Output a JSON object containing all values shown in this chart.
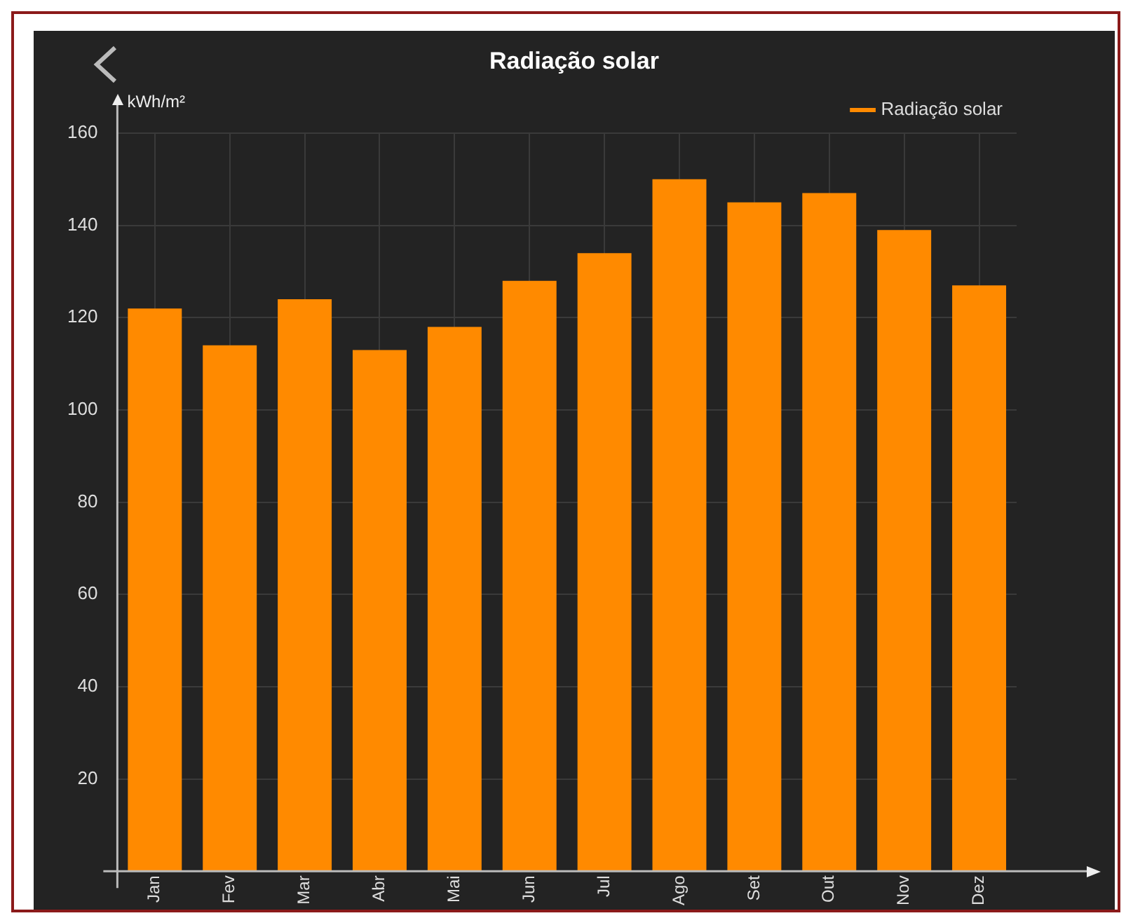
{
  "chart_data": {
    "type": "bar",
    "title": "Radiação solar",
    "ylabel": "kWh/m²",
    "categories": [
      "Jan",
      "Fev",
      "Mar",
      "Abr",
      "Mai",
      "Jun",
      "Jul",
      "Ago",
      "Set",
      "Out",
      "Nov",
      "Dez"
    ],
    "series": [
      {
        "name": "Radiação solar",
        "color": "#ff8a00",
        "values": [
          122,
          114,
          124,
          113,
          118,
          128,
          134,
          150,
          145,
          147,
          139,
          127
        ]
      }
    ],
    "ylim": [
      0,
      160
    ],
    "yticks": [
      20,
      40,
      60,
      80,
      100,
      120,
      140,
      160
    ],
    "grid": true,
    "legend": "top right"
  }
}
